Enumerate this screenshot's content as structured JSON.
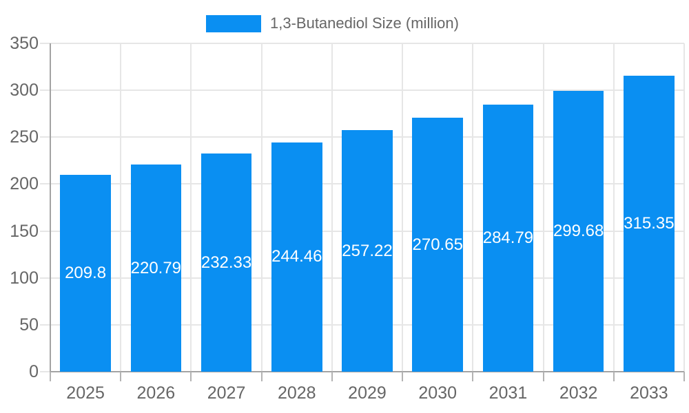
{
  "chart_data": {
    "type": "bar",
    "title": "",
    "legend": "1,3-Butanediol Size (million)",
    "legend_position": "top",
    "categories": [
      "2025",
      "2026",
      "2027",
      "2028",
      "2029",
      "2030",
      "2031",
      "2032",
      "2033"
    ],
    "series": [
      {
        "name": "1,3-Butanediol Size (million)",
        "values": [
          209.8,
          220.79,
          232.33,
          244.46,
          257.22,
          270.65,
          284.79,
          299.68,
          315.35
        ],
        "value_labels": [
          "209.8",
          "220.79",
          "232.33",
          "244.46",
          "257.22",
          "270.65",
          "284.79",
          "299.68",
          "315.35"
        ]
      }
    ],
    "xlabel": "",
    "ylabel": "",
    "ylim": [
      0,
      350
    ],
    "yticks": [
      0,
      50,
      100,
      150,
      200,
      250,
      300,
      350
    ],
    "grid": true,
    "value_labels_inside_bars": true
  },
  "colors": {
    "bar": "#0a8ff2",
    "bar_value_text": "#ffffff",
    "axis_line": "#a3a3a3",
    "tick": "#b3b3b3",
    "gridline": "#e6e6e6",
    "axis_text": "#666666",
    "legend_text": "#666666",
    "background": "#ffffff"
  }
}
